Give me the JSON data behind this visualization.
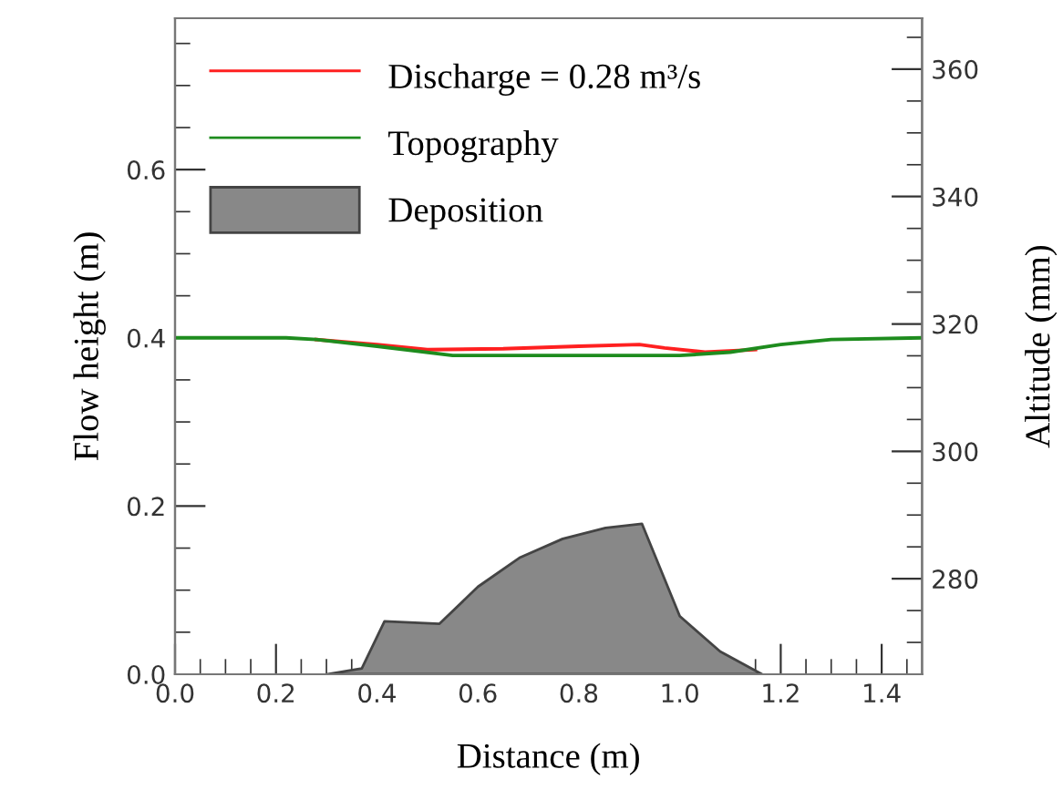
{
  "chart_data": {
    "type": "line",
    "xlabel": "Distance (m)",
    "ylabel": "Flow height (m)",
    "y2label": "Altitude (mm)",
    "xlim": [
      0,
      1.48
    ],
    "ylim": [
      0,
      0.78
    ],
    "y2lim": [
      265,
      368
    ],
    "xticks": [
      {
        "value": 0,
        "label": "0.0"
      },
      {
        "value": 0.05,
        "label": null
      },
      {
        "value": 0.1,
        "label": null
      },
      {
        "value": 0.15,
        "label": null
      },
      {
        "value": 0.2,
        "label": "0.2"
      },
      {
        "value": 0.25,
        "label": null
      },
      {
        "value": 0.3,
        "label": null
      },
      {
        "value": 0.35,
        "label": null
      },
      {
        "value": 0.4,
        "label": "0.4"
      },
      {
        "value": 0.45,
        "label": null
      },
      {
        "value": 0.5,
        "label": null
      },
      {
        "value": 0.55,
        "label": null
      },
      {
        "value": 0.6,
        "label": "0.6"
      },
      {
        "value": 0.65,
        "label": null
      },
      {
        "value": 0.7,
        "label": null
      },
      {
        "value": 0.75,
        "label": null
      },
      {
        "value": 0.8,
        "label": "0.8"
      },
      {
        "value": 0.85,
        "label": null
      },
      {
        "value": 0.9,
        "label": null
      },
      {
        "value": 0.95,
        "label": null
      },
      {
        "value": 1.0,
        "label": "1.0"
      },
      {
        "value": 1.05,
        "label": null
      },
      {
        "value": 1.1,
        "label": null
      },
      {
        "value": 1.15,
        "label": null
      },
      {
        "value": 1.2,
        "label": "1.2"
      },
      {
        "value": 1.25,
        "label": null
      },
      {
        "value": 1.3,
        "label": null
      },
      {
        "value": 1.35,
        "label": null
      },
      {
        "value": 1.4,
        "label": "1.4"
      },
      {
        "value": 1.45,
        "label": null
      }
    ],
    "yticks": [
      {
        "value": 0,
        "label": "0.0"
      },
      {
        "value": 0.05,
        "label": null
      },
      {
        "value": 0.1,
        "label": null
      },
      {
        "value": 0.15,
        "label": null
      },
      {
        "value": 0.2,
        "label": "0.2"
      },
      {
        "value": 0.25,
        "label": null
      },
      {
        "value": 0.3,
        "label": null
      },
      {
        "value": 0.35,
        "label": null
      },
      {
        "value": 0.4,
        "label": "0.4"
      },
      {
        "value": 0.45,
        "label": null
      },
      {
        "value": 0.5,
        "label": null
      },
      {
        "value": 0.55,
        "label": null
      },
      {
        "value": 0.6,
        "label": "0.6"
      },
      {
        "value": 0.65,
        "label": null
      },
      {
        "value": 0.7,
        "label": null
      },
      {
        "value": 0.75,
        "label": null
      }
    ],
    "y2ticks": [
      {
        "value": 270,
        "label": null
      },
      {
        "value": 275,
        "label": null
      },
      280,
      {
        "value": 285,
        "label": null
      },
      {
        "value": 290,
        "label": null
      },
      {
        "value": 295,
        "label": null
      },
      300,
      {
        "value": 305,
        "label": null
      },
      {
        "value": 310,
        "label": null
      },
      {
        "value": 315,
        "label": null
      },
      320,
      {
        "value": 325,
        "label": null
      },
      {
        "value": 330,
        "label": null
      },
      {
        "value": 335,
        "label": null
      },
      340,
      {
        "value": 345,
        "label": null
      },
      {
        "value": 350,
        "label": null
      },
      {
        "value": 355,
        "label": null
      },
      360,
      {
        "value": 365,
        "label": null
      }
    ],
    "legend": "top left",
    "grid": false,
    "series": [
      {
        "name": "Discharge = 0.28 m³/s",
        "color": "#ff2020",
        "x": [
          0.28,
          0.4,
          0.5,
          0.65,
          0.8,
          0.92,
          0.97,
          1.05,
          1.15
        ],
        "values": [
          0.398,
          0.392,
          0.386,
          0.387,
          0.39,
          0.392,
          0.388,
          0.383,
          0.386
        ]
      },
      {
        "name": "Topography",
        "color": "#1e8c1e",
        "x": [
          0,
          0.22,
          0.28,
          0.4,
          0.55,
          1.0,
          1.1,
          1.2,
          1.3,
          1.48
        ],
        "values": [
          0.4,
          0.4,
          0.398,
          0.39,
          0.379,
          0.379,
          0.383,
          0.392,
          0.398,
          0.4
        ]
      },
      {
        "name": "Deposition",
        "type": "area",
        "color": "#888888",
        "x": [
          0.3,
          0.37,
          0.415,
          0.524,
          0.6,
          0.684,
          0.768,
          0.853,
          0.925,
          1.0,
          1.08,
          1.163
        ],
        "values": [
          0,
          0.007,
          0.063,
          0.06,
          0.104,
          0.139,
          0.161,
          0.174,
          0.179,
          0.069,
          0.027,
          0
        ]
      }
    ]
  }
}
